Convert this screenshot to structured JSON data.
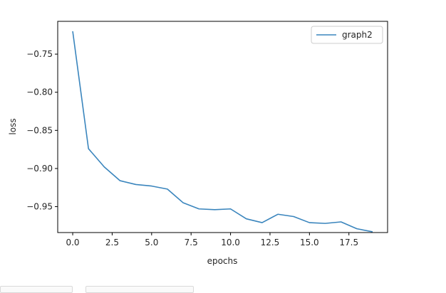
{
  "chart_data": {
    "type": "line",
    "title": "",
    "xlabel": "epochs",
    "ylabel": "loss",
    "xlim": [
      -0.95,
      19.95
    ],
    "ylim": [
      -0.984,
      -0.707
    ],
    "xticks": [
      "0.0",
      "2.5",
      "5.0",
      "7.5",
      "10.0",
      "12.5",
      "15.0",
      "17.5"
    ],
    "yticks": [
      "−0.75",
      "−0.80",
      "−0.85",
      "−0.90",
      "−0.95"
    ],
    "grid": false,
    "legend_position": "top-right",
    "series": [
      {
        "name": "graph2",
        "color": "#3a85bd",
        "x": [
          0,
          1,
          2,
          3,
          4,
          5,
          6,
          7,
          8,
          9,
          10,
          11,
          12,
          13,
          14,
          15,
          16,
          17,
          18,
          19
        ],
        "y": [
          -0.72,
          -0.874,
          -0.898,
          -0.916,
          -0.921,
          -0.923,
          -0.927,
          -0.945,
          -0.953,
          -0.954,
          -0.953,
          -0.966,
          -0.971,
          -0.96,
          -0.963,
          -0.971,
          -0.972,
          -0.97,
          -0.979,
          -0.983
        ]
      }
    ]
  }
}
